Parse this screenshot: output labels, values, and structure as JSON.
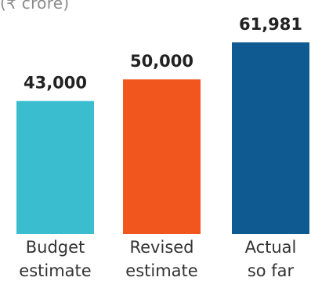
{
  "chart_data": {
    "type": "bar",
    "unit_label": "(₹ crore)",
    "categories": [
      [
        "Budget",
        "estimate"
      ],
      [
        "Revised",
        "estimate"
      ],
      [
        "Actual",
        "so far"
      ]
    ],
    "values": [
      43000,
      50000,
      61981
    ],
    "value_labels": [
      "43,000",
      "50,000",
      "61,981"
    ],
    "bar_colors": [
      "#3bbdd0",
      "#f1561e",
      "#0e5a91"
    ],
    "value_label_color": "#222222",
    "category_label_color": "#333333",
    "ylim": [
      0,
      61981
    ]
  }
}
